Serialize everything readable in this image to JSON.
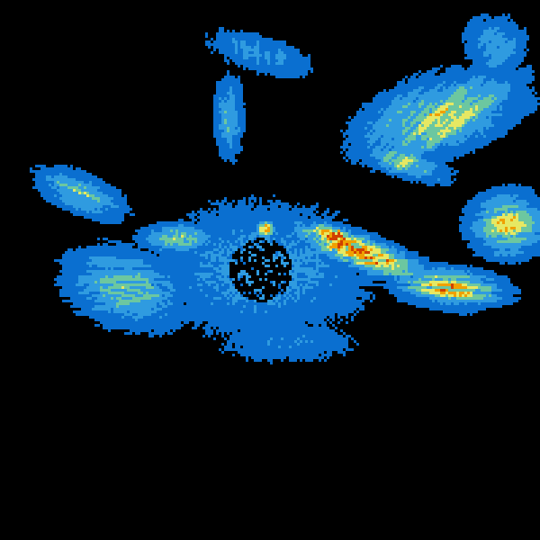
{
  "image": {
    "kind": "weather radar reflectivity sweep",
    "background_color": "#000000",
    "palette": [
      "#0a6fd0",
      "#2f9be0",
      "#6cc7a0",
      "#e6e863",
      "#f0a000",
      "#d04000"
    ]
  }
}
